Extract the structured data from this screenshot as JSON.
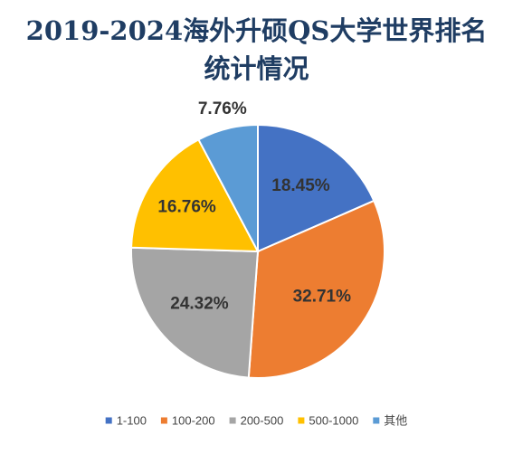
{
  "title": {
    "line1": "2019-2024海外升硕QS大学世界排名",
    "line2": "统计情况"
  },
  "chart_data": {
    "type": "pie",
    "title": "2019-2024海外升硕QS大学世界排名统计情况",
    "legend_position": "bottom",
    "slices": [
      {
        "name": "1-100",
        "value": 18.45,
        "label": "18.45%",
        "color": "#4472c4"
      },
      {
        "name": "100-200",
        "value": 32.71,
        "label": "32.71%",
        "color": "#ed7d31"
      },
      {
        "name": "200-500",
        "value": 24.32,
        "label": "24.32%",
        "color": "#a5a5a5"
      },
      {
        "name": "500-1000",
        "value": 16.76,
        "label": "16.76%",
        "color": "#ffc000"
      },
      {
        "name": "其他",
        "value": 7.76,
        "label": "7.76%",
        "color": "#5b9bd5"
      }
    ]
  }
}
